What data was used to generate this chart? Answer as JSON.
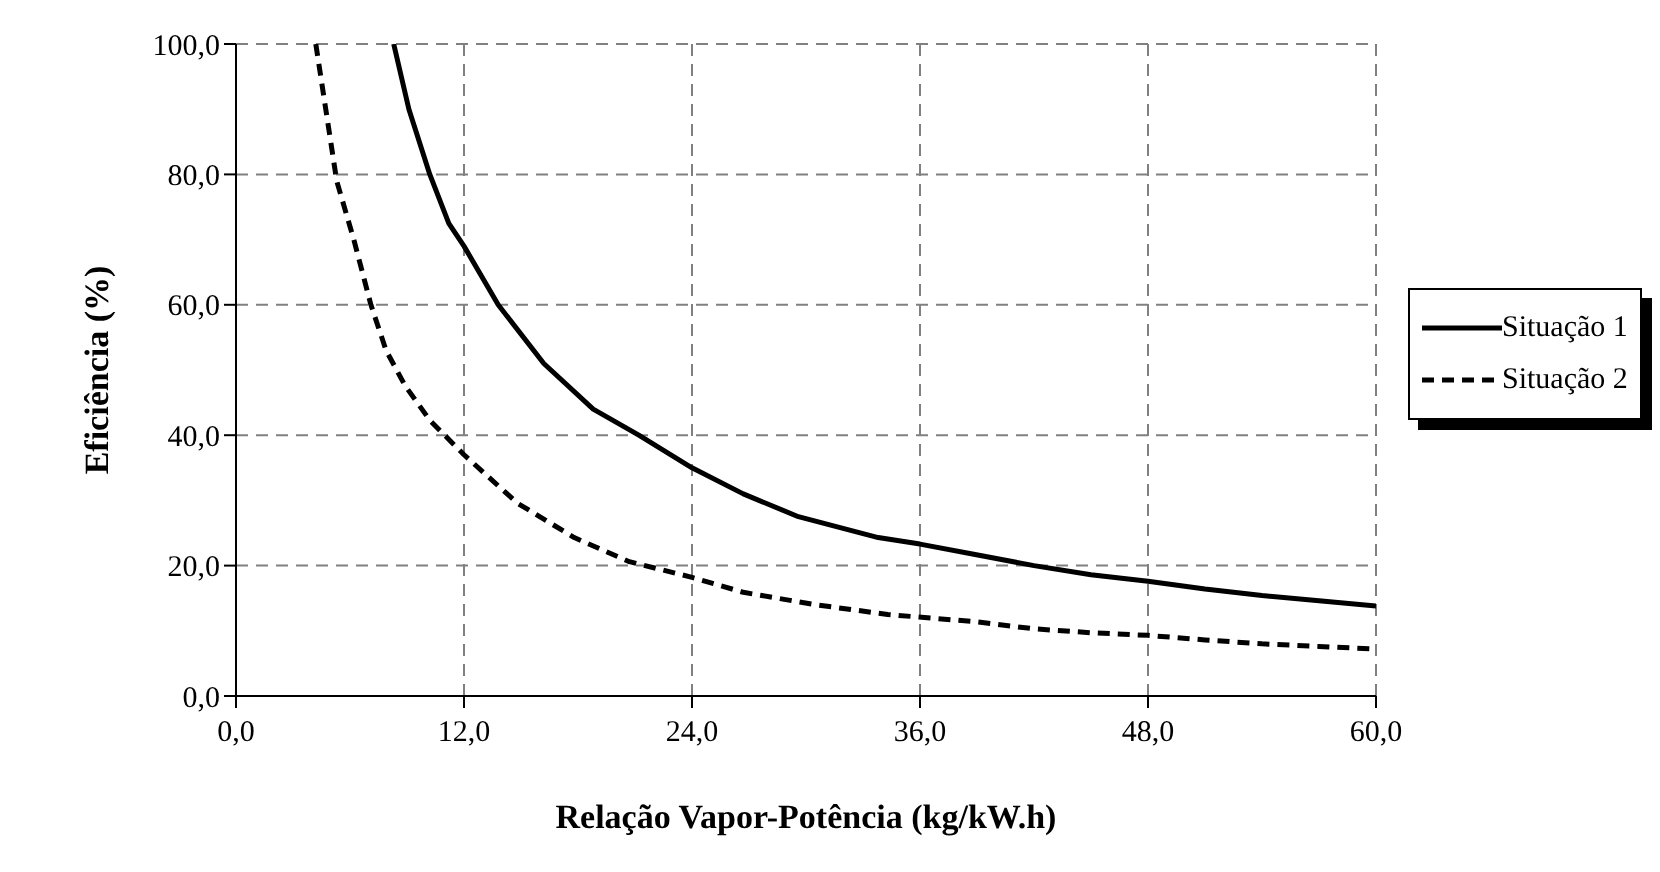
{
  "chart_data": {
    "type": "line",
    "xlabel": "Relação Vapor-Potência (kg/kW.h)",
    "ylabel": "Eficiência (%)",
    "xlim": [
      0,
      60
    ],
    "ylim": [
      0,
      100
    ],
    "xticks": [
      {
        "value": 0,
        "label": "0,0"
      },
      {
        "value": 12,
        "label": "12,0"
      },
      {
        "value": 24,
        "label": "24,0"
      },
      {
        "value": 36,
        "label": "36,0"
      },
      {
        "value": 48,
        "label": "48,0"
      },
      {
        "value": 60,
        "label": "60,0"
      }
    ],
    "yticks": [
      {
        "value": 0,
        "label": "0,0"
      },
      {
        "value": 20,
        "label": "20,0"
      },
      {
        "value": 40,
        "label": "40,0"
      },
      {
        "value": 60,
        "label": "60,0"
      },
      {
        "value": 80,
        "label": "80,0"
      },
      {
        "value": 100,
        "label": "100,0"
      }
    ],
    "grid": true,
    "legend": "right",
    "marker": "none",
    "series": [
      {
        "name": "Situação 1",
        "color": "#000000",
        "line_style": "solid",
        "x": [
          8.3,
          9.1,
          10.2,
          11.2,
          12,
          13.8,
          16.2,
          18.8,
          21.2,
          24,
          26.7,
          29.6,
          33.8,
          36,
          38.9,
          42,
          45,
          48,
          51,
          54,
          57,
          60
        ],
        "values": [
          100,
          90,
          80,
          72.5,
          69,
          60,
          51,
          44,
          40,
          35,
          31,
          27.5,
          24.3,
          23.3,
          21.7,
          20,
          18.6,
          17.6,
          16.4,
          15.4,
          14.6,
          13.8
        ]
      },
      {
        "name": "Situação 2",
        "color": "#000000",
        "line_style": "dashed",
        "x": [
          4.2,
          5.3,
          6.2,
          7.1,
          7.9,
          8.9,
          10.2,
          12,
          14.8,
          17.8,
          20.7,
          24,
          26.7,
          30.5,
          34.3,
          38.9,
          42,
          45,
          48,
          51,
          54,
          57,
          60
        ],
        "values": [
          100,
          79,
          70,
          60,
          53,
          47.6,
          42.3,
          37,
          29.6,
          24.3,
          20.6,
          18.2,
          15.9,
          14,
          12.5,
          11.4,
          10.3,
          9.7,
          9.3,
          8.6,
          8,
          7.6,
          7.2
        ]
      }
    ]
  }
}
